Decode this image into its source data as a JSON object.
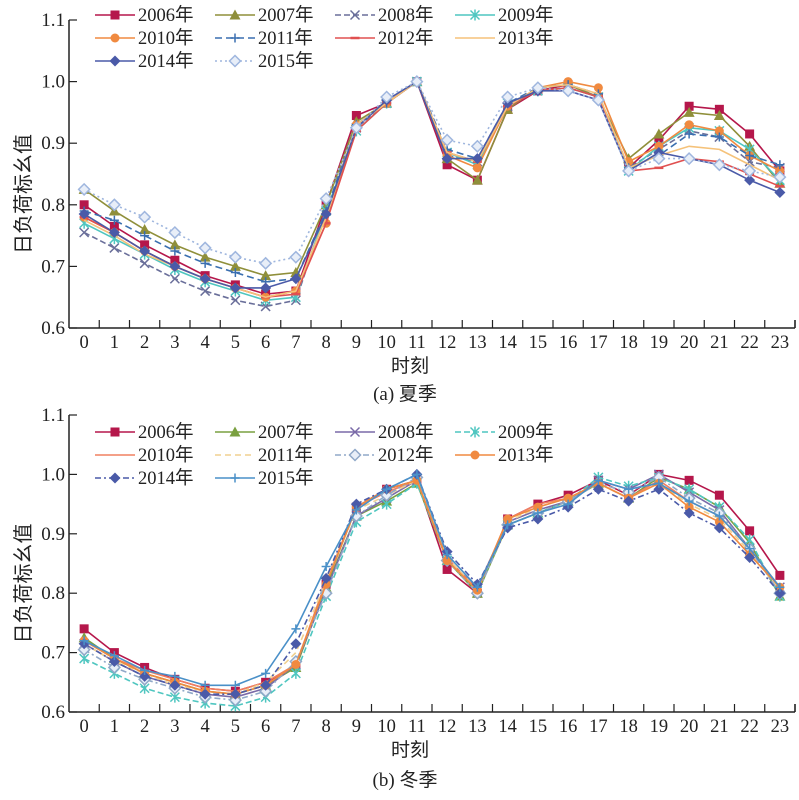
{
  "chart_data": [
    {
      "type": "line",
      "caption": "(a) 夏季",
      "xlabel": "时刻",
      "ylabel": "日负荷标幺值",
      "ylim": [
        0.6,
        1.1
      ],
      "yticks": [
        "0.6",
        "0.7",
        "0.8",
        "0.9",
        "1.0",
        "1.1"
      ],
      "categories": [
        "0",
        "1",
        "2",
        "3",
        "4",
        "5",
        "6",
        "7",
        "8",
        "9",
        "10",
        "11",
        "12",
        "13",
        "14",
        "15",
        "16",
        "17",
        "18",
        "19",
        "20",
        "21",
        "22",
        "23"
      ],
      "legend_position": "top-left",
      "series": [
        {
          "name": "2006年",
          "color": "#b5174b",
          "dash": "",
          "marker": "square",
          "values": [
            0.8,
            0.765,
            0.735,
            0.71,
            0.685,
            0.67,
            0.655,
            0.66,
            0.8,
            0.945,
            0.965,
            1.0,
            0.865,
            0.84,
            0.955,
            0.985,
            0.995,
            0.975,
            0.86,
            0.905,
            0.96,
            0.955,
            0.915,
            0.855
          ]
        },
        {
          "name": "2007年",
          "color": "#8f8f3a",
          "dash": "",
          "marker": "triangle",
          "values": [
            0.825,
            0.79,
            0.76,
            0.735,
            0.715,
            0.7,
            0.685,
            0.69,
            0.8,
            0.935,
            0.965,
            1.0,
            0.875,
            0.84,
            0.955,
            0.99,
            0.995,
            0.975,
            0.875,
            0.915,
            0.95,
            0.945,
            0.895,
            0.835
          ]
        },
        {
          "name": "2008年",
          "color": "#6a6f9a",
          "dash": "6,3",
          "marker": "x",
          "values": [
            0.755,
            0.73,
            0.705,
            0.68,
            0.66,
            0.645,
            0.635,
            0.645,
            0.79,
            0.925,
            0.965,
            1.0,
            0.88,
            0.87,
            0.96,
            0.985,
            0.99,
            0.975,
            0.86,
            0.89,
            0.92,
            0.91,
            0.87,
            0.86
          ]
        },
        {
          "name": "2009年",
          "color": "#4fc6c0",
          "dash": "",
          "marker": "star",
          "values": [
            0.77,
            0.745,
            0.72,
            0.695,
            0.675,
            0.66,
            0.645,
            0.65,
            0.79,
            0.92,
            0.965,
            1.0,
            0.885,
            0.865,
            0.965,
            0.985,
            0.99,
            0.975,
            0.855,
            0.895,
            0.925,
            0.92,
            0.89,
            0.84
          ]
        },
        {
          "name": "2010年",
          "color": "#f08a40",
          "dash": "",
          "marker": "circle",
          "values": [
            0.78,
            0.755,
            0.725,
            0.7,
            0.68,
            0.665,
            0.65,
            0.66,
            0.77,
            0.93,
            0.965,
            1.0,
            0.88,
            0.86,
            0.96,
            0.99,
            1.0,
            0.99,
            0.87,
            0.895,
            0.93,
            0.92,
            0.88,
            0.855
          ]
        },
        {
          "name": "2011年",
          "color": "#3a6fb0",
          "dash": "7,4",
          "marker": "plus",
          "values": [
            0.79,
            0.775,
            0.75,
            0.725,
            0.705,
            0.69,
            0.675,
            0.68,
            0.79,
            0.93,
            0.965,
            1.0,
            0.89,
            0.875,
            0.965,
            0.99,
            0.995,
            0.98,
            0.86,
            0.88,
            0.915,
            0.91,
            0.88,
            0.865
          ]
        },
        {
          "name": "2012年",
          "color": "#e05050",
          "dash": "",
          "marker": "dash",
          "values": [
            0.78,
            0.755,
            0.725,
            0.7,
            0.68,
            0.665,
            0.65,
            0.655,
            0.77,
            0.92,
            0.965,
            1.0,
            0.885,
            0.87,
            0.96,
            0.985,
            0.99,
            0.975,
            0.855,
            0.86,
            0.875,
            0.87,
            0.85,
            0.83
          ]
        },
        {
          "name": "2013年",
          "color": "#f5c27a",
          "dash": "",
          "marker": "none",
          "values": [
            0.775,
            0.75,
            0.72,
            0.7,
            0.68,
            0.665,
            0.65,
            0.66,
            0.78,
            0.93,
            0.965,
            1.0,
            0.885,
            0.87,
            0.96,
            0.99,
            0.995,
            0.98,
            0.86,
            0.88,
            0.895,
            0.89,
            0.865,
            0.84
          ]
        },
        {
          "name": "2014年",
          "color": "#4a5aa8",
          "dash": "",
          "marker": "diamond",
          "values": [
            0.785,
            0.755,
            0.725,
            0.7,
            0.68,
            0.665,
            0.665,
            0.68,
            0.785,
            0.925,
            0.97,
            1.0,
            0.875,
            0.875,
            0.965,
            0.985,
            0.985,
            0.97,
            0.855,
            0.885,
            0.875,
            0.865,
            0.84,
            0.82
          ]
        },
        {
          "name": "2015年",
          "color": "#9fb6de",
          "dash": "2,3",
          "marker": "diamond-hollow",
          "values": [
            0.825,
            0.8,
            0.78,
            0.755,
            0.73,
            0.715,
            0.705,
            0.715,
            0.81,
            0.925,
            0.975,
            1.0,
            0.905,
            0.895,
            0.975,
            0.99,
            0.985,
            0.97,
            0.855,
            0.875,
            0.875,
            0.865,
            0.855,
            0.845
          ]
        }
      ]
    },
    {
      "type": "line",
      "caption": "(b) 冬季",
      "xlabel": "时刻",
      "ylabel": "日负荷标幺值",
      "ylim": [
        0.6,
        1.1
      ],
      "yticks": [
        "0.6",
        "0.7",
        "0.8",
        "0.9",
        "1.0",
        "1.1"
      ],
      "categories": [
        "0",
        "1",
        "2",
        "3",
        "4",
        "5",
        "6",
        "7",
        "8",
        "9",
        "10",
        "11",
        "12",
        "13",
        "14",
        "15",
        "16",
        "17",
        "18",
        "19",
        "20",
        "21",
        "22",
        "23"
      ],
      "legend_position": "top-left",
      "series": [
        {
          "name": "2006年",
          "color": "#b5174b",
          "dash": "",
          "marker": "square",
          "values": [
            0.74,
            0.7,
            0.675,
            0.655,
            0.64,
            0.635,
            0.65,
            0.675,
            0.815,
            0.945,
            0.975,
            0.99,
            0.84,
            0.8,
            0.925,
            0.95,
            0.965,
            0.99,
            0.965,
            1.0,
            0.99,
            0.965,
            0.905,
            0.83
          ]
        },
        {
          "name": "2007年",
          "color": "#7aa040",
          "dash": "",
          "marker": "triangle",
          "values": [
            0.725,
            0.69,
            0.665,
            0.65,
            0.635,
            0.63,
            0.645,
            0.675,
            0.81,
            0.93,
            0.955,
            0.985,
            0.855,
            0.8,
            0.915,
            0.935,
            0.955,
            0.985,
            0.96,
            0.995,
            0.975,
            0.945,
            0.885,
            0.795
          ]
        },
        {
          "name": "2008年",
          "color": "#7a6aa8",
          "dash": "",
          "marker": "x",
          "values": [
            0.715,
            0.685,
            0.66,
            0.645,
            0.63,
            0.625,
            0.64,
            0.68,
            0.805,
            0.93,
            0.96,
            0.99,
            0.855,
            0.81,
            0.92,
            0.94,
            0.955,
            0.99,
            0.975,
            1.0,
            0.97,
            0.94,
            0.875,
            0.81
          ]
        },
        {
          "name": "2009年",
          "color": "#4fc6c0",
          "dash": "6,3",
          "marker": "star",
          "values": [
            0.69,
            0.665,
            0.64,
            0.625,
            0.615,
            0.61,
            0.625,
            0.665,
            0.795,
            0.92,
            0.95,
            0.985,
            0.855,
            0.805,
            0.915,
            0.935,
            0.955,
            0.995,
            0.98,
            0.995,
            0.975,
            0.945,
            0.89,
            0.795
          ]
        },
        {
          "name": "2010年",
          "color": "#f08060",
          "dash": "",
          "marker": "none",
          "values": [
            0.72,
            0.69,
            0.67,
            0.655,
            0.64,
            0.635,
            0.65,
            0.68,
            0.82,
            0.945,
            0.97,
            0.99,
            0.86,
            0.805,
            0.925,
            0.95,
            0.96,
            0.985,
            0.96,
            0.99,
            0.955,
            0.93,
            0.875,
            0.81
          ]
        },
        {
          "name": "2011年",
          "color": "#f0d090",
          "dash": "6,4",
          "marker": "none",
          "values": [
            0.715,
            0.685,
            0.665,
            0.645,
            0.635,
            0.63,
            0.65,
            0.7,
            0.82,
            0.94,
            0.965,
            0.99,
            0.86,
            0.805,
            0.92,
            0.945,
            0.96,
            0.985,
            0.96,
            0.985,
            0.95,
            0.925,
            0.87,
            0.805
          ]
        },
        {
          "name": "2012年",
          "color": "#90a8c8",
          "dash": "6,3,2,3",
          "marker": "diamond-hollow",
          "values": [
            0.705,
            0.675,
            0.655,
            0.64,
            0.625,
            0.62,
            0.635,
            0.685,
            0.8,
            0.93,
            0.965,
            0.995,
            0.855,
            0.8,
            0.915,
            0.935,
            0.955,
            0.985,
            0.97,
            0.995,
            0.96,
            0.935,
            0.875,
            0.8
          ]
        },
        {
          "name": "2013年",
          "color": "#f08a40",
          "dash": "",
          "marker": "circle",
          "values": [
            0.72,
            0.69,
            0.665,
            0.65,
            0.635,
            0.63,
            0.645,
            0.68,
            0.815,
            0.945,
            0.975,
            0.99,
            0.855,
            0.805,
            0.925,
            0.945,
            0.96,
            0.985,
            0.96,
            0.985,
            0.945,
            0.92,
            0.865,
            0.81
          ]
        },
        {
          "name": "2014年",
          "color": "#4a5aa8",
          "dash": "6,3,2,3",
          "marker": "diamond",
          "values": [
            0.715,
            0.685,
            0.66,
            0.645,
            0.63,
            0.63,
            0.645,
            0.715,
            0.825,
            0.95,
            0.975,
            1.0,
            0.87,
            0.815,
            0.91,
            0.925,
            0.945,
            0.975,
            0.955,
            0.975,
            0.935,
            0.91,
            0.86,
            0.8
          ]
        },
        {
          "name": "2015年",
          "color": "#4a90c8",
          "dash": "",
          "marker": "plus",
          "values": [
            0.72,
            0.695,
            0.67,
            0.66,
            0.645,
            0.645,
            0.665,
            0.74,
            0.845,
            0.94,
            0.975,
            1.0,
            0.865,
            0.81,
            0.915,
            0.935,
            0.95,
            0.99,
            0.975,
            0.985,
            0.955,
            0.93,
            0.875,
            0.81
          ]
        }
      ]
    }
  ]
}
